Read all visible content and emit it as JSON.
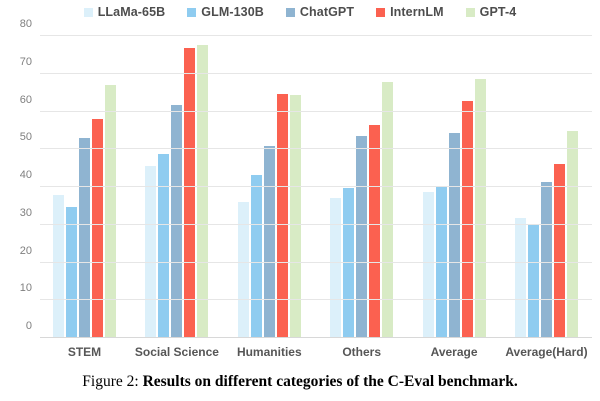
{
  "chart_data": {
    "type": "bar",
    "title": "",
    "xlabel": "",
    "ylabel": "",
    "ylim": [
      0,
      80
    ],
    "yticks": [
      0,
      10,
      20,
      30,
      40,
      50,
      60,
      70,
      80
    ],
    "grid": true,
    "legend_position": "top-center",
    "categories": [
      "STEM",
      "Social Science",
      "Humanities",
      "Others",
      "Average",
      "Average(Hard)"
    ],
    "series": [
      {
        "name": "LLaMa-65B",
        "color": "#dcf0fa",
        "values": [
          37.8,
          45.6,
          36.1,
          37.1,
          38.8,
          31.7
        ]
      },
      {
        "name": "GLM-130B",
        "color": "#8fccf0",
        "values": [
          34.8,
          48.7,
          43.3,
          39.8,
          40.3,
          30.3
        ]
      },
      {
        "name": "ChatGPT",
        "color": "#8fb4d1",
        "values": [
          52.9,
          61.8,
          50.9,
          53.6,
          54.4,
          41.4
        ]
      },
      {
        "name": "InternLM",
        "color": "#fb6150",
        "values": [
          58.1,
          76.7,
          64.6,
          56.4,
          62.7,
          46.0
        ]
      },
      {
        "name": "GPT-4",
        "color": "#d8ebc5",
        "values": [
          67.1,
          77.6,
          64.5,
          67.8,
          68.7,
          54.9
        ]
      }
    ]
  },
  "colors": {
    "gridline": "#e6e6e6",
    "baseline": "#d8d8d8",
    "tick_label": "#7f7f7f",
    "category_label": "#565656",
    "legend_label": "#4d4d4d"
  },
  "caption": {
    "prefix": "Figure 2: ",
    "text": "Results on different categories of the C-Eval benchmark."
  }
}
